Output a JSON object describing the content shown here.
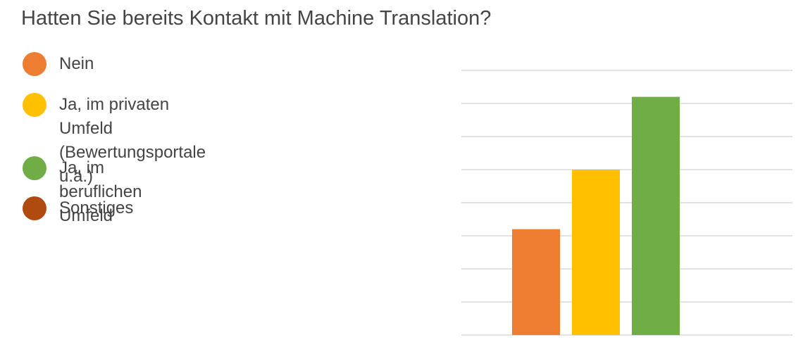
{
  "title": "Hatten Sie bereits Kontakt mit Machine Translation?",
  "chart_data": {
    "type": "bar",
    "categories": [
      "Nein",
      "Ja, im privaten Umfeld\n(Bewertungsportale u.ä.)",
      "Ja, im beruflichen Umfeld",
      "Sonstiges"
    ],
    "values": [
      32,
      50,
      72,
      0
    ],
    "colors": [
      "#ED7D31",
      "#FFC000",
      "#70AD47",
      "#B04B0F"
    ],
    "ylim": [
      0,
      80
    ],
    "grid": true,
    "legend_position": "left"
  }
}
